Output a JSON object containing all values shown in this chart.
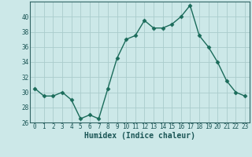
{
  "x": [
    0,
    1,
    2,
    3,
    4,
    5,
    6,
    7,
    8,
    9,
    10,
    11,
    12,
    13,
    14,
    15,
    16,
    17,
    18,
    19,
    20,
    21,
    22,
    23
  ],
  "y": [
    30.5,
    29.5,
    29.5,
    30.0,
    29.0,
    26.5,
    27.0,
    26.5,
    30.5,
    34.5,
    37.0,
    37.5,
    39.5,
    38.5,
    38.5,
    39.0,
    40.0,
    41.5,
    37.5,
    36.0,
    34.0,
    31.5,
    30.0,
    29.5
  ],
  "line_color": "#1a6b5a",
  "marker": "D",
  "markersize": 2.5,
  "linewidth": 1.0,
  "background_color": "#cce8e8",
  "grid_color": "#aacccc",
  "xlabel": "Humidex (Indice chaleur)",
  "xlim": [
    -0.5,
    23.5
  ],
  "ylim": [
    26,
    42
  ],
  "yticks": [
    26,
    28,
    30,
    32,
    34,
    36,
    38,
    40
  ],
  "xticks": [
    0,
    1,
    2,
    3,
    4,
    5,
    6,
    7,
    8,
    9,
    10,
    11,
    12,
    13,
    14,
    15,
    16,
    17,
    18,
    19,
    20,
    21,
    22,
    23
  ],
  "tick_fontsize": 5.5,
  "xlabel_fontsize": 7.0,
  "tick_color": "#1a5555",
  "spine_color": "#336666"
}
